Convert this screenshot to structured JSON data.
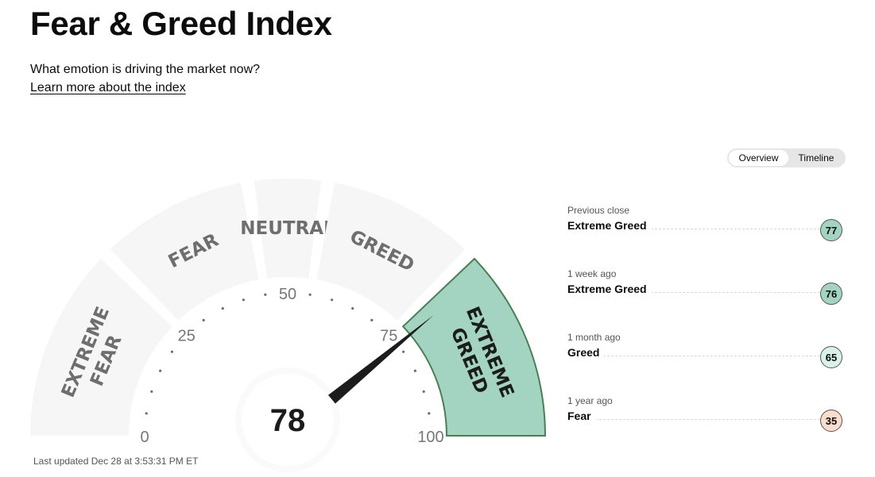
{
  "header": {
    "title": "Fear & Greed Index",
    "subtitle": "What emotion is driving the market now?",
    "learn_more": "Learn more about the index"
  },
  "toggle": {
    "options": [
      "Overview",
      "Timeline"
    ],
    "active": "Overview"
  },
  "chart_data": {
    "type": "gauge",
    "value": 78,
    "range": [
      0,
      100
    ],
    "tick_labels": [
      {
        "value": 0,
        "label": "0"
      },
      {
        "value": 25,
        "label": "25"
      },
      {
        "value": 50,
        "label": "50"
      },
      {
        "value": 75,
        "label": "75"
      },
      {
        "value": 100,
        "label": "100"
      }
    ],
    "segments": [
      {
        "name": "EXTREME FEAR",
        "from": 0,
        "to": 25
      },
      {
        "name": "FEAR",
        "from": 25,
        "to": 45
      },
      {
        "name": "NEUTRAL",
        "from": 45,
        "to": 55
      },
      {
        "name": "GREED",
        "from": 55,
        "to": 75
      },
      {
        "name": "EXTREME GREED",
        "from": 75,
        "to": 100
      }
    ],
    "active_segment": "EXTREME GREED",
    "colors": {
      "segment": "#f6f6f6",
      "active_segment": "#a3d4c2",
      "active_border": "#4a7f55",
      "segment_text": "#6e6e6e",
      "active_text": "#1c1c1c",
      "needle": "#1c1c1c"
    }
  },
  "history": [
    {
      "when": "Previous close",
      "label": "Extreme Greed",
      "value": "77",
      "color": "#a3d4c2"
    },
    {
      "when": "1 week ago",
      "label": "Extreme Greed",
      "value": "76",
      "color": "#a3d4c2"
    },
    {
      "when": "1 month ago",
      "label": "Greed",
      "value": "65",
      "color": "#d9f2e9"
    },
    {
      "when": "1 year ago",
      "label": "Fear",
      "value": "35",
      "color": "#fbdccd"
    }
  ],
  "last_updated": "Last updated Dec 28 at 3:53:31 PM ET"
}
